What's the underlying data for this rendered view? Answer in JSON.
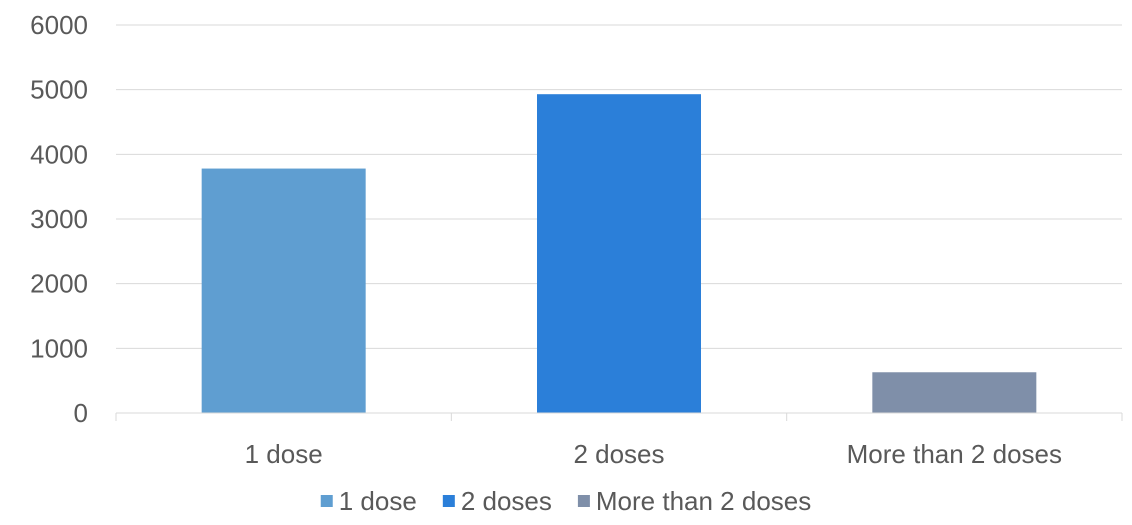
{
  "chart_data": {
    "type": "bar",
    "title": "",
    "xlabel": "",
    "ylabel": "",
    "categories": [
      "1 dose",
      "2 doses",
      "More than 2 doses"
    ],
    "values": [
      3780,
      4930,
      630
    ],
    "colors": [
      "#5f9ed1",
      "#2b7fd9",
      "#7f8fa9"
    ],
    "ylim": [
      0,
      6000
    ],
    "yticks": [
      0,
      1000,
      2000,
      3000,
      4000,
      5000,
      6000
    ],
    "grid": true,
    "legend": {
      "position": "bottom",
      "entries": [
        "1 dose",
        "2 doses",
        "More than 2 doses"
      ]
    }
  }
}
